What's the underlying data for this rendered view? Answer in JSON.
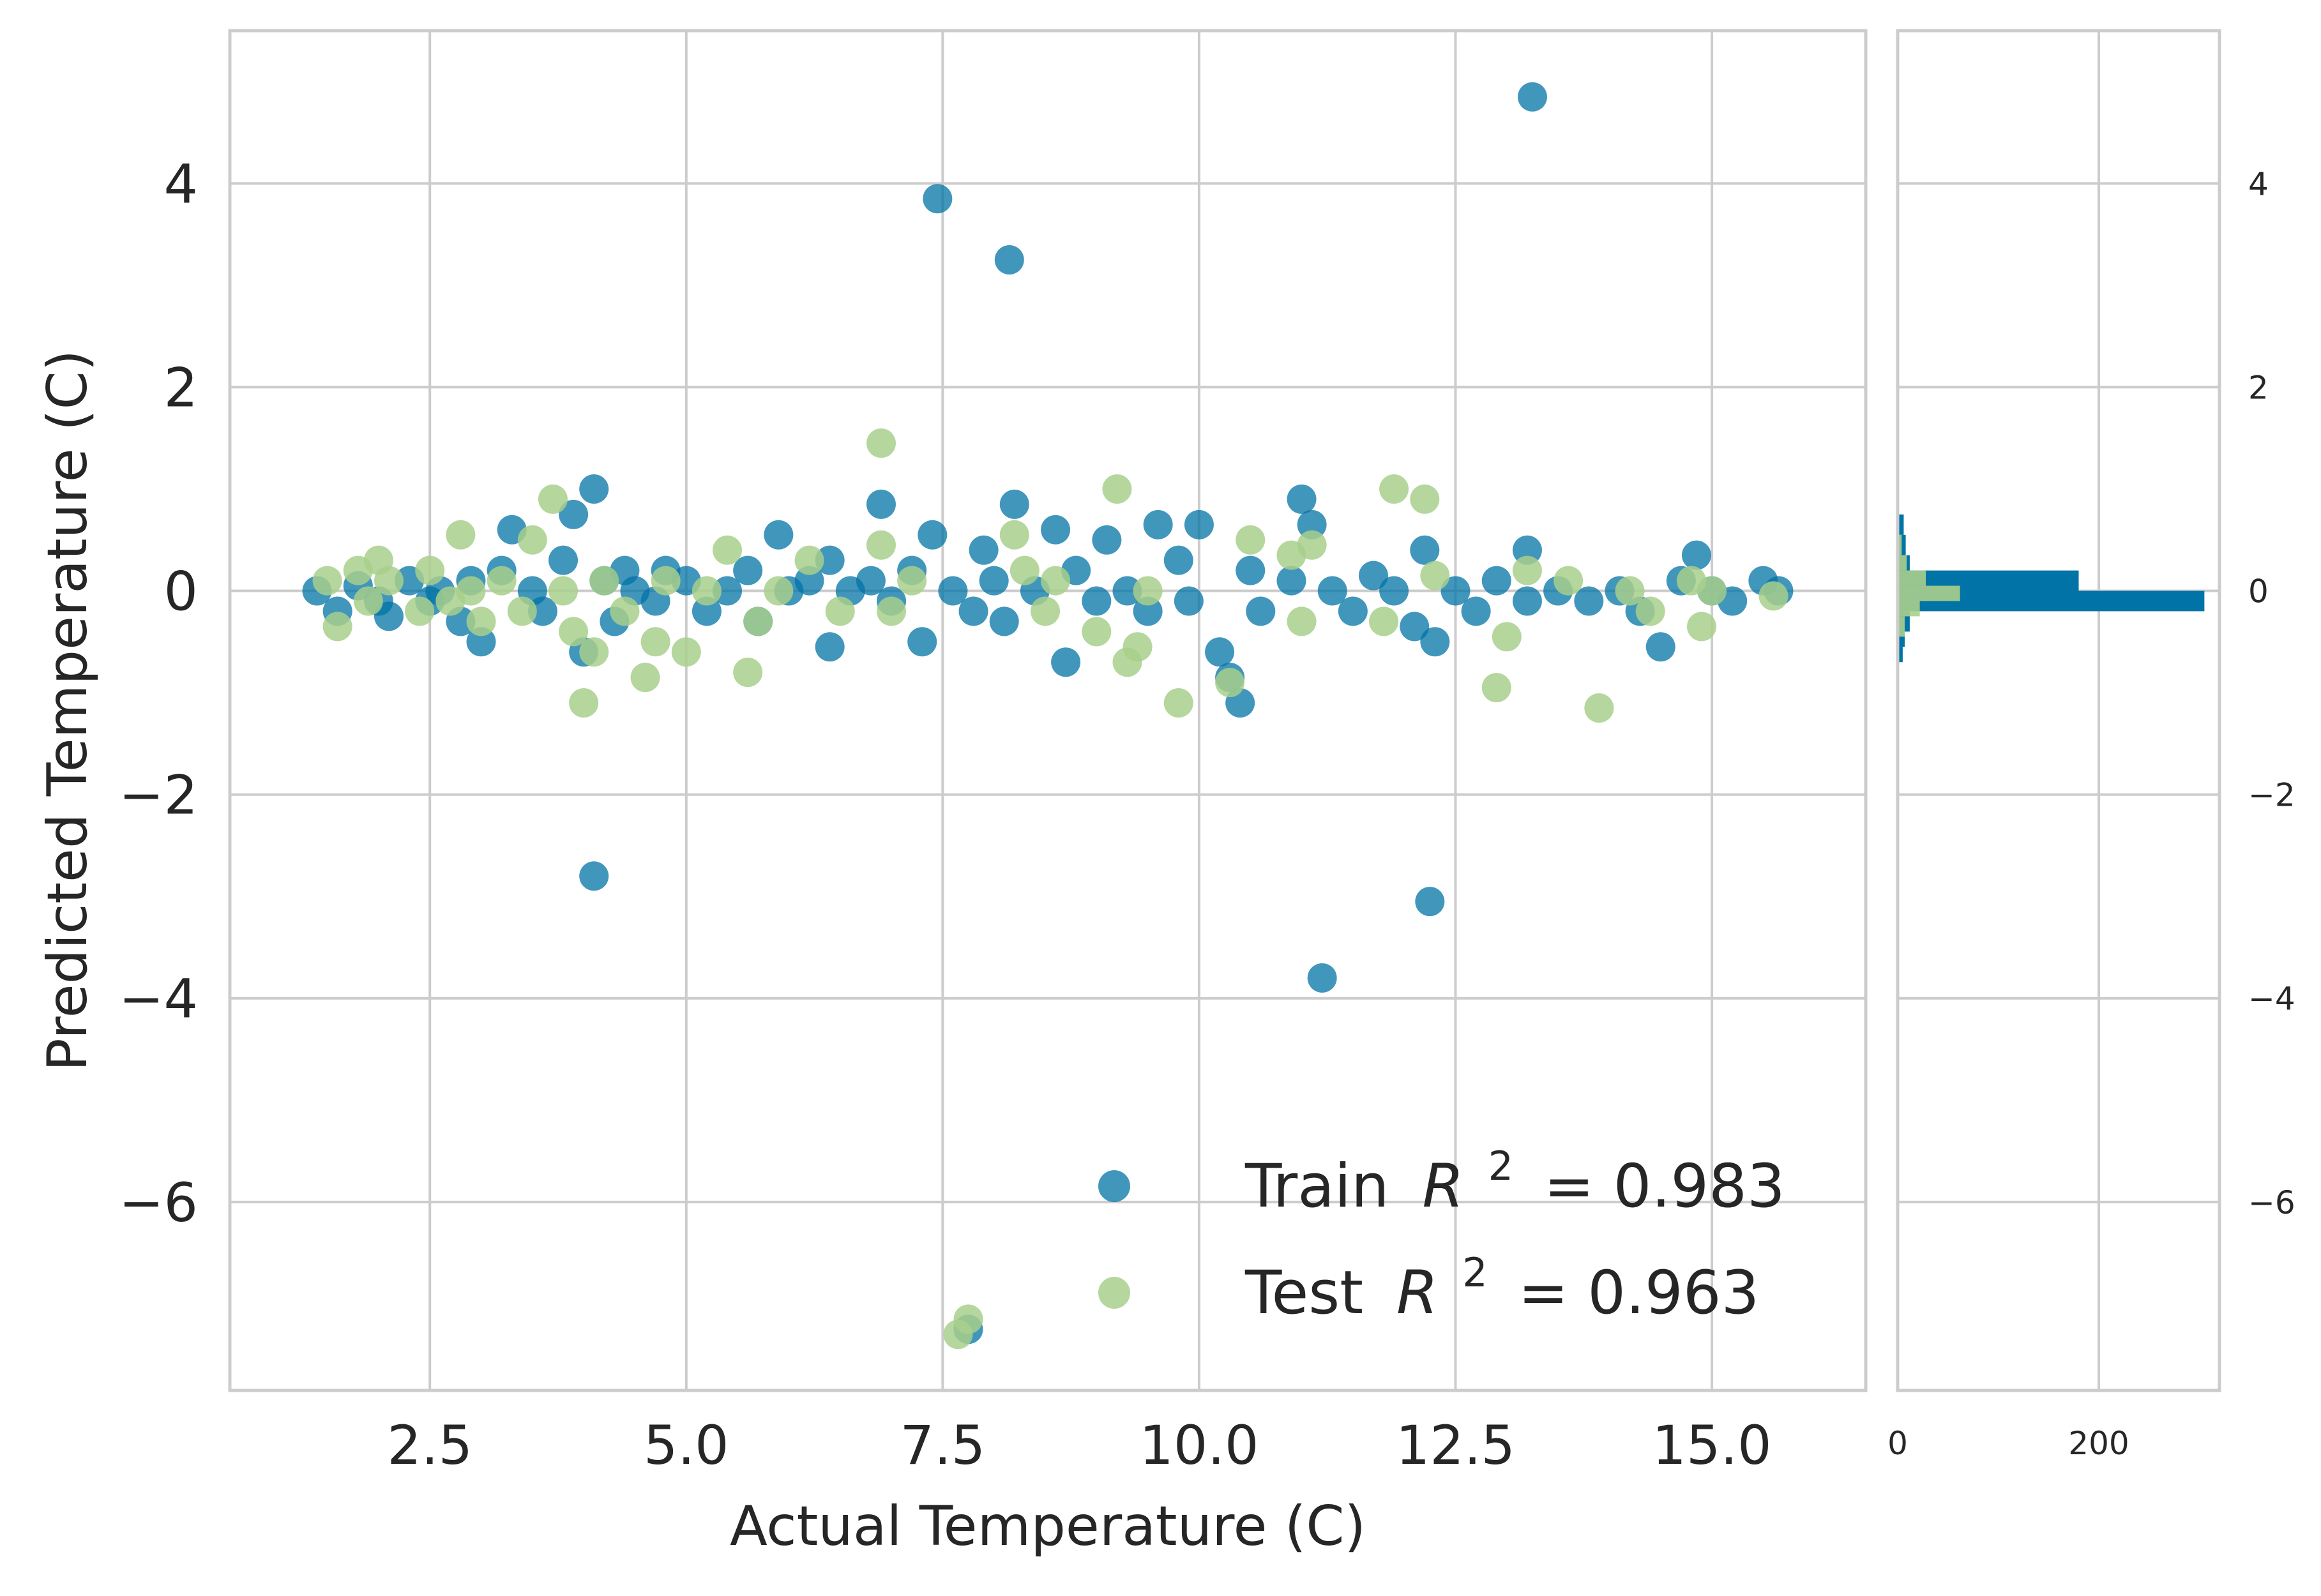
{
  "chart_data": {
    "type": "scatter",
    "xlabel": "Actual Temperature (C)",
    "ylabel": "Predicted Temperature (C)",
    "xlim": [
      0.55,
      16.5
    ],
    "ylim": [
      -7.85,
      5.5
    ],
    "x_ticks": [
      "2.5",
      "5.0",
      "7.5",
      "10.0",
      "12.5",
      "15.0"
    ],
    "y_ticks": [
      "4",
      "2",
      "0",
      "−2",
      "−4",
      "−6"
    ],
    "grid": true,
    "legend_location": "lower-right",
    "series": [
      {
        "name": "Train",
        "legend_label": "Train",
        "r2_label": "R",
        "r2_exponent": "2",
        "r2_value": "= 0.983",
        "color": "#0173a6",
        "points": [
          [
            1.4,
            0.0
          ],
          [
            1.6,
            -0.2
          ],
          [
            1.8,
            0.05
          ],
          [
            2.0,
            -0.1
          ],
          [
            2.1,
            -0.25
          ],
          [
            2.3,
            0.1
          ],
          [
            2.5,
            -0.1
          ],
          [
            2.6,
            0.0
          ],
          [
            2.8,
            -0.3
          ],
          [
            2.9,
            0.1
          ],
          [
            3.0,
            -0.5
          ],
          [
            3.2,
            0.2
          ],
          [
            3.3,
            0.6
          ],
          [
            3.5,
            0.0
          ],
          [
            3.6,
            -0.2
          ],
          [
            3.8,
            0.3
          ],
          [
            3.9,
            0.75
          ],
          [
            4.0,
            -0.6
          ],
          [
            4.1,
            1.0
          ],
          [
            4.1,
            -2.8
          ],
          [
            4.2,
            0.1
          ],
          [
            4.3,
            -0.3
          ],
          [
            4.4,
            0.2
          ],
          [
            4.5,
            0.0
          ],
          [
            4.7,
            -0.1
          ],
          [
            4.8,
            0.2
          ],
          [
            5.0,
            0.1
          ],
          [
            5.2,
            -0.2
          ],
          [
            5.4,
            0.0
          ],
          [
            5.6,
            0.2
          ],
          [
            5.7,
            -0.3
          ],
          [
            5.9,
            0.55
          ],
          [
            6.0,
            0.0
          ],
          [
            6.2,
            0.1
          ],
          [
            6.4,
            -0.55
          ],
          [
            6.4,
            0.3
          ],
          [
            6.6,
            0.0
          ],
          [
            6.8,
            0.1
          ],
          [
            6.9,
            0.85
          ],
          [
            7.0,
            -0.1
          ],
          [
            7.2,
            0.2
          ],
          [
            7.3,
            -0.5
          ],
          [
            7.4,
            0.55
          ],
          [
            7.45,
            3.85
          ],
          [
            7.6,
            0.0
          ],
          [
            7.8,
            -0.2
          ],
          [
            7.9,
            0.4
          ],
          [
            8.0,
            0.1
          ],
          [
            8.1,
            -0.3
          ],
          [
            8.15,
            3.25
          ],
          [
            8.2,
            0.85
          ],
          [
            8.4,
            0.0
          ],
          [
            8.6,
            0.6
          ],
          [
            8.7,
            -0.7
          ],
          [
            8.8,
            0.2
          ],
          [
            9.0,
            -0.1
          ],
          [
            9.1,
            0.5
          ],
          [
            9.3,
            0.0
          ],
          [
            9.5,
            -0.2
          ],
          [
            9.6,
            0.65
          ],
          [
            9.8,
            0.3
          ],
          [
            9.9,
            -0.1
          ],
          [
            10.0,
            0.65
          ],
          [
            10.2,
            -0.6
          ],
          [
            10.3,
            -0.85
          ],
          [
            10.4,
            -1.1
          ],
          [
            10.5,
            0.2
          ],
          [
            10.6,
            -0.2
          ],
          [
            10.9,
            0.1
          ],
          [
            11.0,
            0.9
          ],
          [
            11.1,
            0.65
          ],
          [
            11.2,
            -3.8
          ],
          [
            11.3,
            0.0
          ],
          [
            11.5,
            -0.2
          ],
          [
            11.7,
            0.15
          ],
          [
            11.9,
            0.0
          ],
          [
            12.1,
            -0.35
          ],
          [
            12.2,
            0.4
          ],
          [
            12.25,
            -3.05
          ],
          [
            12.3,
            -0.5
          ],
          [
            12.5,
            0.0
          ],
          [
            12.7,
            -0.2
          ],
          [
            12.9,
            0.1
          ],
          [
            13.2,
            0.4
          ],
          [
            13.2,
            -0.1
          ],
          [
            13.25,
            4.85
          ],
          [
            13.5,
            0.0
          ],
          [
            13.8,
            -0.1
          ],
          [
            14.1,
            0.0
          ],
          [
            14.3,
            -0.2
          ],
          [
            14.5,
            -0.55
          ],
          [
            14.7,
            0.1
          ],
          [
            14.85,
            0.35
          ],
          [
            15.0,
            0.0
          ],
          [
            15.2,
            -0.1
          ],
          [
            15.5,
            0.1
          ],
          [
            15.65,
            0.0
          ],
          [
            7.75,
            -7.25
          ]
        ]
      },
      {
        "name": "Test",
        "legend_label": "Test",
        "r2_label": "R",
        "r2_exponent": "2",
        "r2_value": "= 0.963",
        "color": "#a8cf8c",
        "points": [
          [
            1.5,
            0.1
          ],
          [
            1.6,
            -0.35
          ],
          [
            1.8,
            0.2
          ],
          [
            1.9,
            -0.1
          ],
          [
            2.0,
            0.3
          ],
          [
            2.1,
            0.1
          ],
          [
            2.4,
            -0.2
          ],
          [
            2.5,
            0.2
          ],
          [
            2.7,
            -0.1
          ],
          [
            2.8,
            0.55
          ],
          [
            2.9,
            0.0
          ],
          [
            3.0,
            -0.3
          ],
          [
            3.2,
            0.1
          ],
          [
            3.4,
            -0.2
          ],
          [
            3.5,
            0.5
          ],
          [
            3.7,
            0.9
          ],
          [
            3.8,
            0.0
          ],
          [
            3.9,
            -0.4
          ],
          [
            4.0,
            -1.1
          ],
          [
            4.1,
            -0.6
          ],
          [
            4.2,
            0.1
          ],
          [
            4.4,
            -0.2
          ],
          [
            4.6,
            -0.85
          ],
          [
            4.7,
            -0.5
          ],
          [
            4.8,
            0.1
          ],
          [
            5.0,
            -0.6
          ],
          [
            5.2,
            0.0
          ],
          [
            5.4,
            0.4
          ],
          [
            5.6,
            -0.8
          ],
          [
            5.7,
            -0.3
          ],
          [
            5.9,
            0.0
          ],
          [
            6.2,
            0.3
          ],
          [
            6.5,
            -0.2
          ],
          [
            6.9,
            1.45
          ],
          [
            6.9,
            0.45
          ],
          [
            7.0,
            -0.2
          ],
          [
            7.2,
            0.1
          ],
          [
            7.65,
            -7.3
          ],
          [
            7.75,
            -7.15
          ],
          [
            8.2,
            0.55
          ],
          [
            8.3,
            0.2
          ],
          [
            8.5,
            -0.2
          ],
          [
            8.6,
            0.1
          ],
          [
            9.0,
            -0.4
          ],
          [
            9.2,
            1.0
          ],
          [
            9.3,
            -0.7
          ],
          [
            9.4,
            -0.55
          ],
          [
            9.5,
            0.0
          ],
          [
            9.8,
            -1.1
          ],
          [
            10.3,
            -0.9
          ],
          [
            10.5,
            0.5
          ],
          [
            10.9,
            0.35
          ],
          [
            11.0,
            -0.3
          ],
          [
            11.1,
            0.45
          ],
          [
            11.8,
            -0.3
          ],
          [
            11.9,
            1.0
          ],
          [
            12.2,
            0.9
          ],
          [
            12.3,
            0.15
          ],
          [
            12.9,
            -0.95
          ],
          [
            13.0,
            -0.45
          ],
          [
            13.2,
            0.2
          ],
          [
            13.6,
            0.1
          ],
          [
            13.9,
            -1.15
          ],
          [
            14.2,
            0.0
          ],
          [
            14.4,
            -0.2
          ],
          [
            14.8,
            0.1
          ],
          [
            14.9,
            -0.35
          ],
          [
            15.0,
            0.0
          ],
          [
            15.6,
            -0.05
          ]
        ]
      }
    ],
    "side_histogram": {
      "x_ticks": [
        "0",
        "200"
      ],
      "xlim": [
        0,
        320
      ],
      "y_ticks": [
        "4",
        "2",
        "0",
        "−2",
        "−4",
        "−6"
      ],
      "train_bins": [
        {
          "y0": 0.55,
          "y1": 0.75,
          "count": 6
        },
        {
          "y0": 0.35,
          "y1": 0.55,
          "count": 8
        },
        {
          "y0": 0.2,
          "y1": 0.35,
          "count": 12
        },
        {
          "y0": 0.0,
          "y1": 0.2,
          "count": 180
        },
        {
          "y0": -0.2,
          "y1": 0.0,
          "count": 305
        },
        {
          "y0": -0.4,
          "y1": -0.2,
          "count": 12
        },
        {
          "y0": -0.55,
          "y1": -0.4,
          "count": 7
        },
        {
          "y0": -0.7,
          "y1": -0.55,
          "count": 5
        }
      ],
      "test_bins": [
        {
          "y0": 0.35,
          "y1": 0.55,
          "count": 4
        },
        {
          "y0": 0.2,
          "y1": 0.35,
          "count": 9
        },
        {
          "y0": 0.05,
          "y1": 0.2,
          "count": 28
        },
        {
          "y0": -0.1,
          "y1": 0.05,
          "count": 62
        },
        {
          "y0": -0.25,
          "y1": -0.1,
          "count": 22
        },
        {
          "y0": -0.45,
          "y1": -0.25,
          "count": 7
        }
      ]
    }
  }
}
